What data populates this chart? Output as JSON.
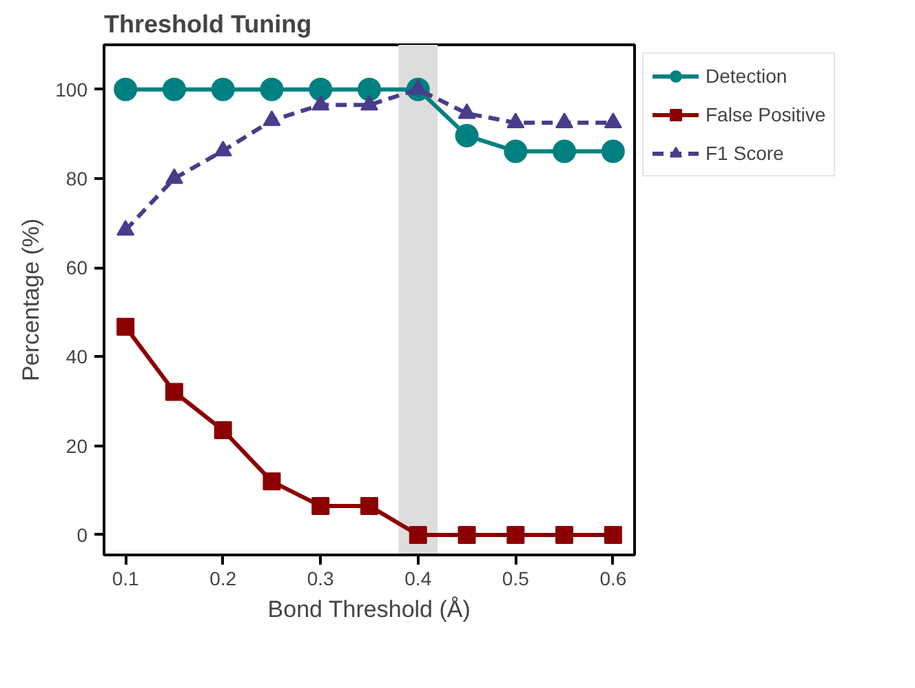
{
  "chart_data": {
    "type": "line",
    "title": "Threshold Tuning",
    "xlabel": "Bond Threshold (Å)",
    "ylabel": "Percentage (%)",
    "x": [
      0.1,
      0.15,
      0.2,
      0.25,
      0.3,
      0.35,
      0.4,
      0.45,
      0.5,
      0.55,
      0.6
    ],
    "series": [
      {
        "name": "Detection",
        "color": "#008080",
        "marker": "circle",
        "line_style": "solid",
        "values": [
          100,
          100,
          100,
          100,
          100,
          100,
          100,
          89.6,
          86.1,
          86.1,
          86.1
        ]
      },
      {
        "name": "False Positive",
        "color": "#8b0000",
        "marker": "square",
        "line_style": "solid",
        "values": [
          46.7,
          32.1,
          23.5,
          12.0,
          6.5,
          6.5,
          0,
          0,
          0,
          0,
          0
        ]
      },
      {
        "name": "F1 Score",
        "color": "#483d8b",
        "marker": "triangle",
        "line_style": "dashed",
        "values": [
          68.4,
          80,
          86.2,
          93.0,
          96.5,
          96.5,
          100,
          94.6,
          92.5,
          92.5,
          92.5
        ]
      }
    ],
    "xlim": [
      0.078,
      0.622
    ],
    "ylim": [
      -4.5,
      110
    ],
    "xticks": [
      0.1,
      0.2,
      0.3,
      0.4,
      0.5,
      0.6
    ],
    "yticks": [
      0,
      20,
      40,
      60,
      80,
      100
    ],
    "bands": [
      {
        "axis": "x",
        "from": 0.38,
        "to": 0.42,
        "color": "#dddddd"
      }
    ],
    "grid": false,
    "legend": "right"
  }
}
